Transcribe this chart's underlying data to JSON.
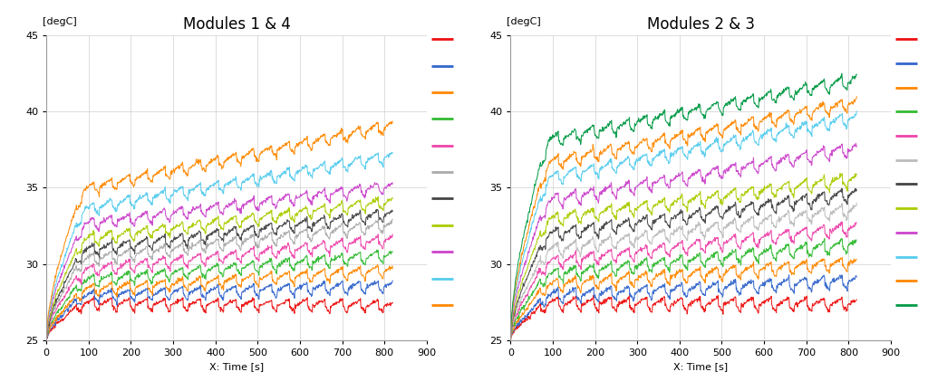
{
  "title1": "Modules 1 & 4",
  "title2": "Modules 2 & 3",
  "ylabel": "[degC]",
  "xlabel": "X: Time [s]",
  "xlim": [
    0,
    900
  ],
  "ylim": [
    25,
    45
  ],
  "yticks": [
    25,
    30,
    35,
    40,
    45
  ],
  "xticks": [
    0,
    100,
    200,
    300,
    400,
    500,
    600,
    700,
    800,
    900
  ],
  "colors1": [
    "#ee1111",
    "#3366cc",
    "#ff8800",
    "#33bb33",
    "#ee44aa",
    "#aaaaaa",
    "#444444",
    "#aacc00",
    "#cc44cc",
    "#55ccee",
    "#ff8800"
  ],
  "colors2": [
    "#ee1111",
    "#3366cc",
    "#ff8800",
    "#33bb33",
    "#ee44aa",
    "#bbbbbb",
    "#444444",
    "#aacc00",
    "#cc44cc",
    "#55ccee",
    "#ff8800",
    "#009944"
  ],
  "n_points": 820,
  "bg_color": "#ffffff",
  "grid_color": "#cccccc",
  "title_fontsize": 12,
  "label_fontsize": 8,
  "tick_fontsize": 8
}
